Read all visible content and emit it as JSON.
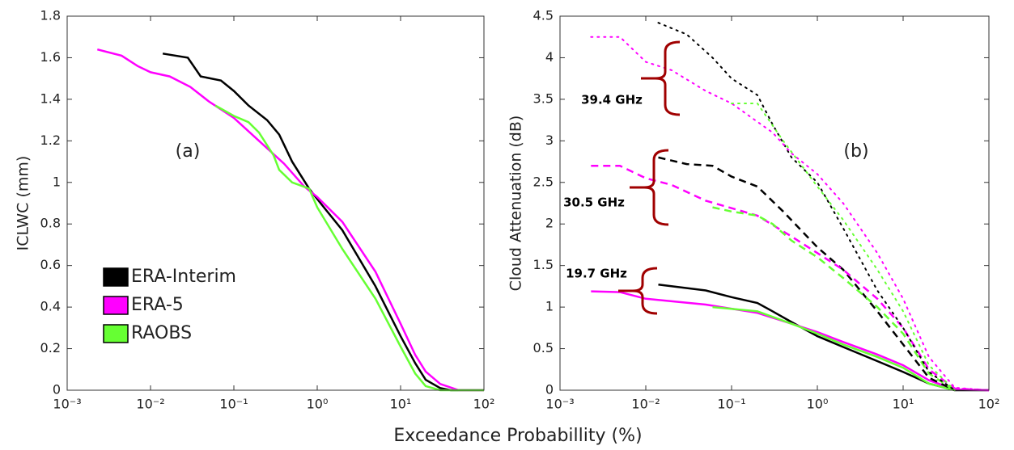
{
  "xlabel": "Exceedance Probabillity (%)",
  "chart_data": [
    {
      "type": "line",
      "ylabel": "ICLWC (mm)",
      "xscale": "log",
      "xlim": [
        0.001,
        100
      ],
      "xticks": [
        {
          "value": 0.001,
          "label": "10⁻³"
        },
        {
          "value": 0.01,
          "label": "10⁻²"
        },
        {
          "value": 0.1,
          "label": "10⁻¹"
        },
        {
          "value": 1,
          "label": "10⁰"
        },
        {
          "value": 10,
          "label": "10¹"
        },
        {
          "value": 100,
          "label": "10²"
        }
      ],
      "ylim": [
        0,
        1.8
      ],
      "yticks": [
        0,
        0.2,
        0.4,
        0.6,
        0.8,
        1,
        1.2,
        1.4,
        1.6,
        1.8
      ],
      "legend": "lower left",
      "annotations": [
        "(a)"
      ],
      "series": [
        {
          "name": "ERA-Interim",
          "color": "#000000",
          "dash": "solid",
          "x": [
            0.014,
            0.028,
            0.04,
            0.07,
            0.1,
            0.15,
            0.25,
            0.35,
            0.5,
            0.8,
            1,
            2,
            5,
            10,
            15,
            20,
            30,
            40,
            100
          ],
          "values": [
            1.62,
            1.6,
            1.51,
            1.49,
            1.44,
            1.37,
            1.3,
            1.23,
            1.1,
            0.97,
            0.92,
            0.77,
            0.5,
            0.26,
            0.13,
            0.05,
            0.01,
            0,
            0
          ]
        },
        {
          "name": "ERA-5",
          "color": "#ff00ff",
          "dash": "solid",
          "x": [
            0.0023,
            0.0045,
            0.007,
            0.01,
            0.017,
            0.03,
            0.05,
            0.1,
            0.2,
            0.4,
            0.7,
            1,
            2,
            5,
            10,
            15,
            20,
            30,
            50,
            100
          ],
          "values": [
            1.64,
            1.61,
            1.56,
            1.53,
            1.51,
            1.46,
            1.39,
            1.31,
            1.2,
            1.09,
            0.98,
            0.93,
            0.81,
            0.57,
            0.32,
            0.17,
            0.09,
            0.03,
            0,
            0
          ]
        },
        {
          "name": "RAOBS",
          "color": "#66ff33",
          "dash": "solid",
          "x": [
            0.06,
            0.1,
            0.15,
            0.2,
            0.3,
            0.35,
            0.5,
            0.8,
            1,
            2,
            5,
            10,
            15,
            20,
            30,
            100
          ],
          "values": [
            1.37,
            1.32,
            1.29,
            1.24,
            1.13,
            1.06,
            1.0,
            0.97,
            0.88,
            0.68,
            0.44,
            0.21,
            0.08,
            0.02,
            0,
            0
          ]
        }
      ]
    },
    {
      "type": "line",
      "ylabel": "Cloud Attenuation (dB)",
      "xscale": "log",
      "xlim": [
        0.001,
        100
      ],
      "xticks": [
        {
          "value": 0.001,
          "label": "10⁻³"
        },
        {
          "value": 0.01,
          "label": "10⁻²"
        },
        {
          "value": 0.1,
          "label": "10⁻¹"
        },
        {
          "value": 1,
          "label": "10⁰"
        },
        {
          "value": 10,
          "label": "10¹"
        },
        {
          "value": 100,
          "label": "10²"
        }
      ],
      "ylim": [
        0,
        4.5
      ],
      "yticks": [
        0,
        0.5,
        1,
        1.5,
        2,
        2.5,
        3,
        3.5,
        4,
        4.5
      ],
      "annotations": [
        "(b)",
        "39.4 GHz",
        "30.5 GHz",
        "19.7 GHz"
      ],
      "series": [
        {
          "color": "#000000",
          "dash": "solid",
          "x": [
            0.014,
            0.05,
            0.1,
            0.2,
            0.3,
            0.5,
            1,
            2,
            5,
            10,
            20,
            40,
            100
          ],
          "values": [
            1.27,
            1.2,
            1.12,
            1.05,
            0.95,
            0.82,
            0.65,
            0.52,
            0.35,
            0.22,
            0.08,
            0,
            0
          ]
        },
        {
          "color": "#ff00ff",
          "dash": "solid",
          "x": [
            0.0023,
            0.005,
            0.01,
            0.05,
            0.2,
            0.5,
            1,
            2,
            5,
            10,
            20,
            40,
            100
          ],
          "values": [
            1.19,
            1.18,
            1.1,
            1.03,
            0.93,
            0.8,
            0.7,
            0.58,
            0.43,
            0.3,
            0.12,
            0.01,
            0
          ]
        },
        {
          "color": "#66ff33",
          "dash": "solid",
          "x": [
            0.06,
            0.2,
            0.5,
            1,
            2,
            5,
            10,
            20,
            40
          ],
          "values": [
            1.0,
            0.95,
            0.8,
            0.68,
            0.55,
            0.4,
            0.27,
            0.08,
            0
          ]
        },
        {
          "color": "#000000",
          "dash": "dashed",
          "x": [
            0.014,
            0.03,
            0.06,
            0.1,
            0.2,
            0.4,
            1,
            2,
            5,
            10,
            20,
            40
          ],
          "values": [
            2.8,
            2.72,
            2.7,
            2.57,
            2.45,
            2.15,
            1.72,
            1.45,
            0.95,
            0.55,
            0.15,
            0
          ]
        },
        {
          "color": "#ff00ff",
          "dash": "dashed",
          "x": [
            0.0023,
            0.005,
            0.01,
            0.02,
            0.05,
            0.2,
            0.5,
            1,
            2,
            5,
            10,
            20,
            40,
            100
          ],
          "values": [
            2.7,
            2.7,
            2.55,
            2.47,
            2.28,
            2.1,
            1.85,
            1.65,
            1.45,
            1.1,
            0.75,
            0.25,
            0.02,
            0
          ]
        },
        {
          "color": "#66ff33",
          "dash": "dashed",
          "x": [
            0.06,
            0.1,
            0.2,
            0.3,
            0.5,
            1,
            2,
            5,
            10,
            20,
            40
          ],
          "values": [
            2.2,
            2.15,
            2.1,
            2.0,
            1.8,
            1.6,
            1.35,
            1.0,
            0.68,
            0.2,
            0
          ]
        },
        {
          "color": "#000000",
          "dash": "dotted",
          "x": [
            0.014,
            0.03,
            0.06,
            0.1,
            0.2,
            0.3,
            0.5,
            1,
            2,
            5,
            10,
            20,
            40
          ],
          "values": [
            4.42,
            4.28,
            4.0,
            3.75,
            3.55,
            3.2,
            2.8,
            2.5,
            1.95,
            1.2,
            0.75,
            0.22,
            0
          ]
        },
        {
          "color": "#ff00ff",
          "dash": "dotted",
          "x": [
            0.0023,
            0.005,
            0.01,
            0.02,
            0.05,
            0.1,
            0.3,
            0.5,
            1,
            2,
            5,
            10,
            20,
            40,
            100
          ],
          "values": [
            4.25,
            4.25,
            3.95,
            3.85,
            3.6,
            3.45,
            3.1,
            2.85,
            2.6,
            2.25,
            1.65,
            1.1,
            0.4,
            0.03,
            0
          ]
        },
        {
          "color": "#66ff33",
          "dash": "dotted",
          "x": [
            0.1,
            0.2,
            0.4,
            1,
            2,
            5,
            10,
            20,
            40
          ],
          "values": [
            3.45,
            3.45,
            3.0,
            2.45,
            2.05,
            1.45,
            0.95,
            0.3,
            0
          ]
        }
      ]
    }
  ]
}
